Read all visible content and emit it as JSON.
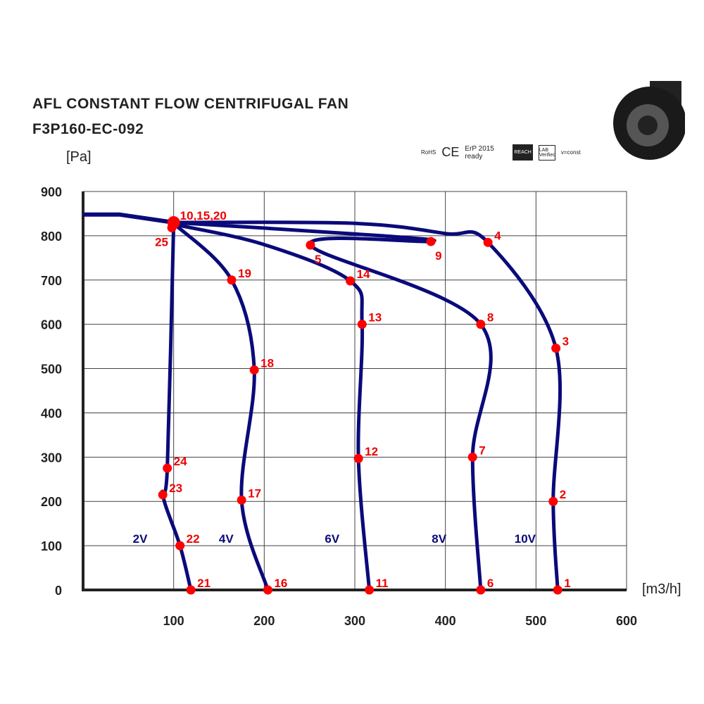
{
  "title": "AFL CONSTANT FLOW CENTRIFUGAL FAN",
  "model": "F3P160-EC-092",
  "certifications": [
    "RoHS",
    "CE",
    "ErP 2015 ready",
    "REACH",
    "LAB Verified",
    "v=const"
  ],
  "chart_data": {
    "type": "line",
    "ylabel": "[Pa]",
    "xlabel": "[m3/h]",
    "xlim": [
      0,
      600
    ],
    "ylim": [
      0,
      900
    ],
    "xticks": [
      100,
      200,
      300,
      400,
      500,
      600
    ],
    "yticks": [
      0,
      100,
      200,
      300,
      400,
      500,
      600,
      700,
      800,
      900
    ],
    "grid": true,
    "line_color": "#0a0a7a",
    "point_color": "#ff0000",
    "series": [
      {
        "name": "10V",
        "points": [
          {
            "label": "1",
            "x": 524,
            "y": 0
          },
          {
            "label": "2",
            "x": 519,
            "y": 200
          },
          {
            "label": "3",
            "x": 522,
            "y": 546
          },
          {
            "label": "4",
            "x": 447,
            "y": 785
          },
          {
            "label": "10,15,20",
            "x": 100,
            "y": 830
          }
        ]
      },
      {
        "name": "8V",
        "points": [
          {
            "label": "6",
            "x": 439,
            "y": 0
          },
          {
            "label": "7",
            "x": 430,
            "y": 300
          },
          {
            "label": "8",
            "x": 439,
            "y": 600
          },
          {
            "label": "9",
            "x": 384,
            "y": 787
          },
          {
            "label": "5",
            "x": 251,
            "y": 779
          }
        ]
      },
      {
        "name": "6V",
        "points": [
          {
            "label": "11",
            "x": 316,
            "y": 0
          },
          {
            "label": "12",
            "x": 304,
            "y": 297
          },
          {
            "label": "13",
            "x": 308,
            "y": 600
          },
          {
            "label": "14",
            "x": 295,
            "y": 698
          }
        ]
      },
      {
        "name": "4V",
        "points": [
          {
            "label": "16",
            "x": 204,
            "y": 0
          },
          {
            "label": "17",
            "x": 175,
            "y": 203
          },
          {
            "label": "18",
            "x": 189,
            "y": 497
          },
          {
            "label": "19",
            "x": 164,
            "y": 700
          }
        ]
      },
      {
        "name": "2V",
        "points": [
          {
            "label": "21",
            "x": 119,
            "y": 0
          },
          {
            "label": "22",
            "x": 107,
            "y": 100
          },
          {
            "label": "23",
            "x": 88,
            "y": 215
          },
          {
            "label": "24",
            "x": 93,
            "y": 275
          },
          {
            "label": "25",
            "x": 98,
            "y": 818
          }
        ]
      }
    ],
    "voltage_labels": [
      {
        "text": "2V",
        "x": 63,
        "y": 110
      },
      {
        "text": "4V",
        "x": 158,
        "y": 110
      },
      {
        "text": "6V",
        "x": 275,
        "y": 110
      },
      {
        "text": "8V",
        "x": 393,
        "y": 110
      },
      {
        "text": "10V",
        "x": 488,
        "y": 110
      }
    ]
  }
}
